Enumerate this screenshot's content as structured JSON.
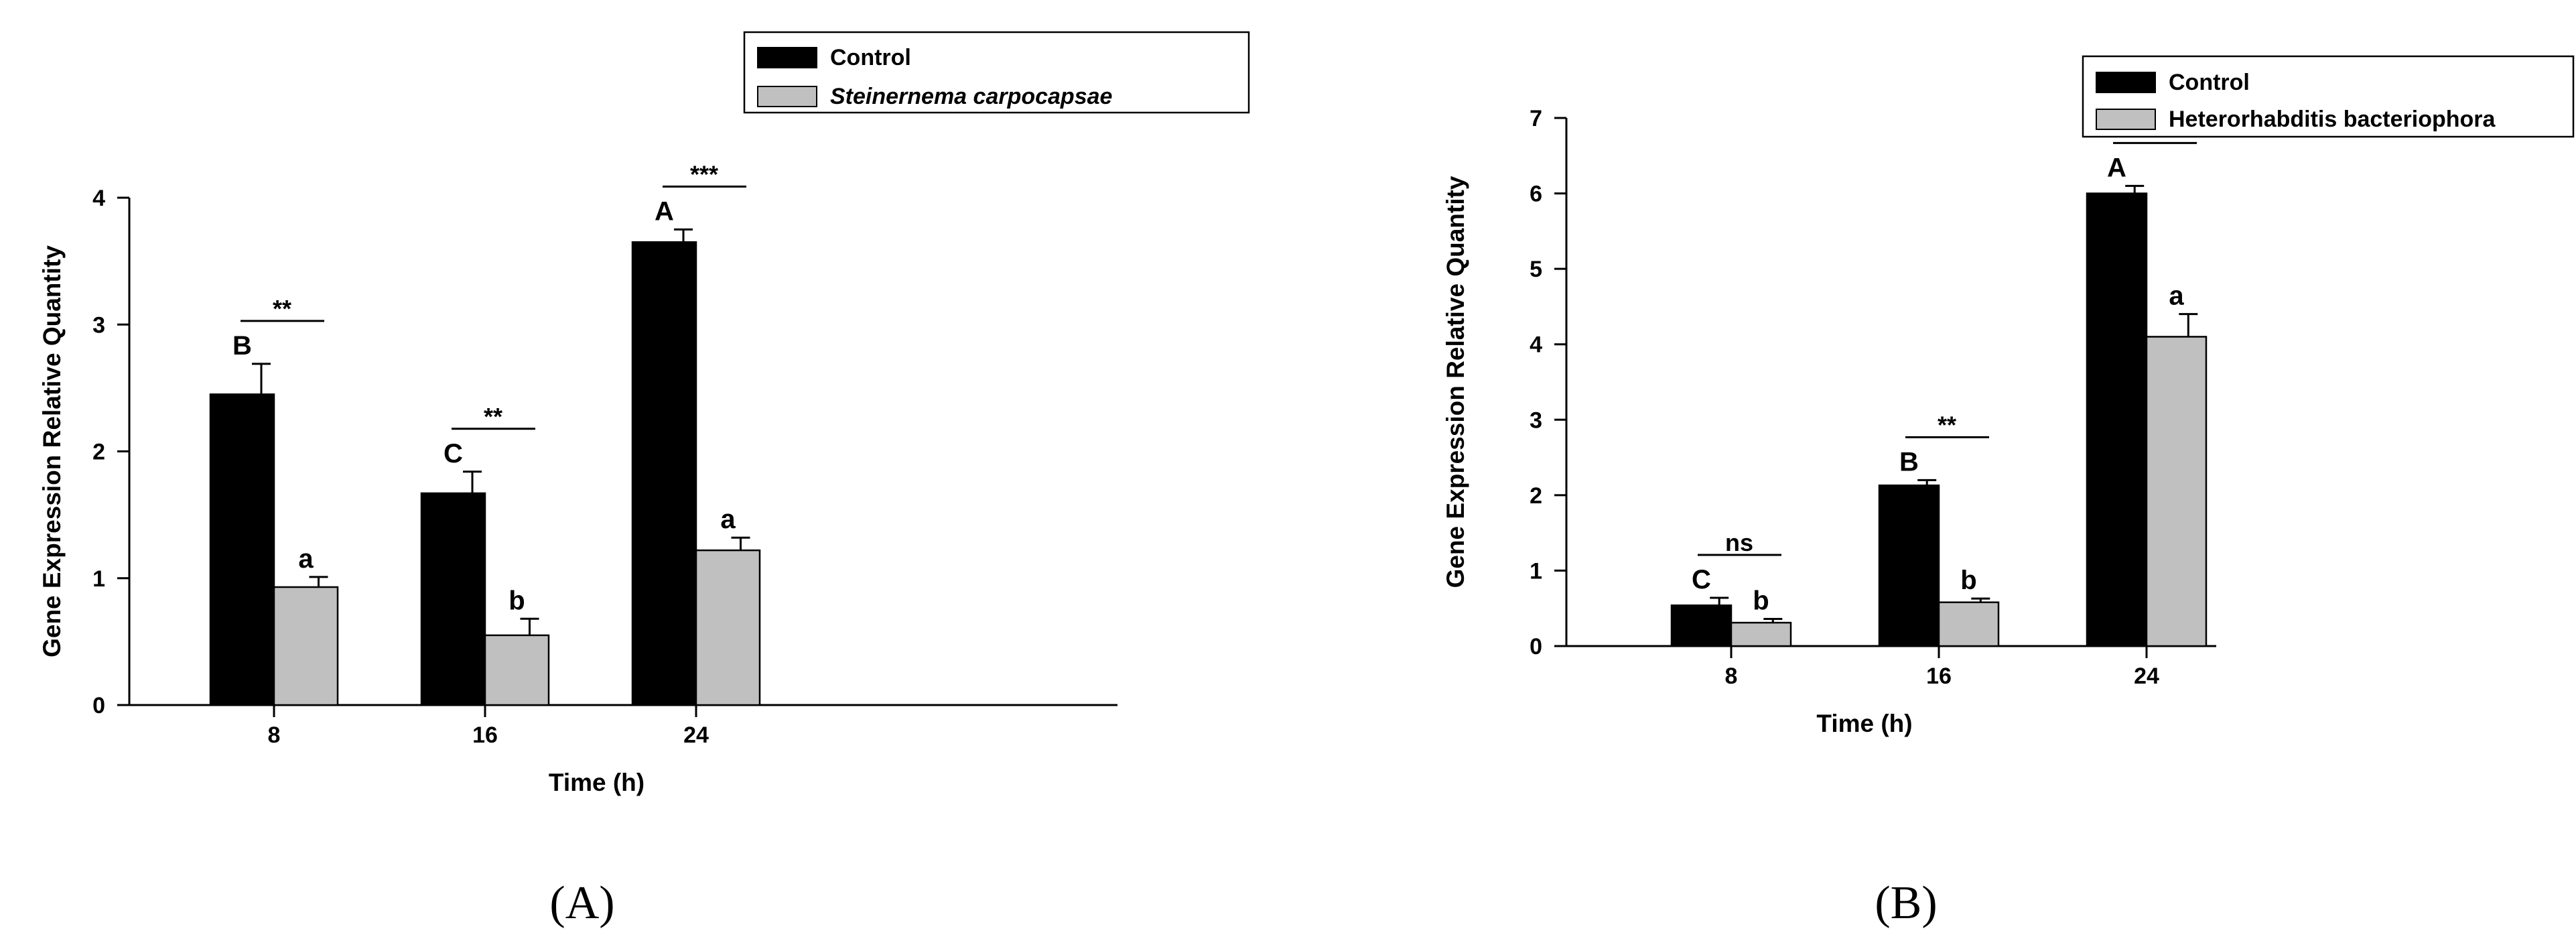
{
  "chart_data": [
    {
      "type": "bar",
      "panel_label": "(A)",
      "categories": [
        "8",
        "16",
        "24"
      ],
      "xlabel": "Time (h)",
      "ylabel": "Gene Expression Relative Quantity",
      "ylim": [
        0,
        4
      ],
      "yticks": [
        "0",
        "1",
        "2",
        "3",
        "4"
      ],
      "legend": {
        "placement": "top-right",
        "entries": [
          "Control",
          "Steinernema carpocapsae"
        ],
        "italic": [
          false,
          true
        ]
      },
      "colors": [
        "#000000",
        "#c0c0c0"
      ],
      "series": [
        {
          "name": "Control",
          "values": [
            2.45,
            1.67,
            3.65
          ],
          "errors": [
            0.24,
            0.17,
            0.1
          ],
          "letters": [
            "B",
            "C",
            "A"
          ]
        },
        {
          "name": "Steinernema carpocapsae",
          "values": [
            0.93,
            0.55,
            1.22
          ],
          "errors": [
            0.08,
            0.13,
            0.1
          ],
          "letters": [
            "a",
            "b",
            "a"
          ]
        }
      ],
      "significance": [
        "**",
        "**",
        "***"
      ]
    },
    {
      "type": "bar",
      "panel_label": "(B)",
      "categories": [
        "8",
        "16",
        "24"
      ],
      "xlabel": "Time (h)",
      "ylabel": "Gene Expression Relative Quantity",
      "ylim": [
        0,
        7
      ],
      "yticks": [
        "0",
        "1",
        "2",
        "3",
        "4",
        "5",
        "6",
        "7"
      ],
      "legend": {
        "placement": "top-right",
        "entries": [
          "Control",
          "Heterorhabditis bacteriophora"
        ],
        "italic": [
          false,
          false
        ]
      },
      "colors": [
        "#000000",
        "#c0c0c0"
      ],
      "series": [
        {
          "name": "Control",
          "values": [
            0.54,
            2.13,
            6.0
          ],
          "errors": [
            0.1,
            0.07,
            0.1
          ],
          "letters": [
            "C",
            "B",
            "A"
          ]
        },
        {
          "name": "Heterorhabditis bacteriophora",
          "values": [
            0.31,
            0.58,
            4.1
          ],
          "errors": [
            0.05,
            0.05,
            0.3
          ],
          "letters": [
            "b",
            "b",
            "a"
          ]
        }
      ],
      "significance": [
        "ns",
        "**",
        "*"
      ]
    }
  ]
}
